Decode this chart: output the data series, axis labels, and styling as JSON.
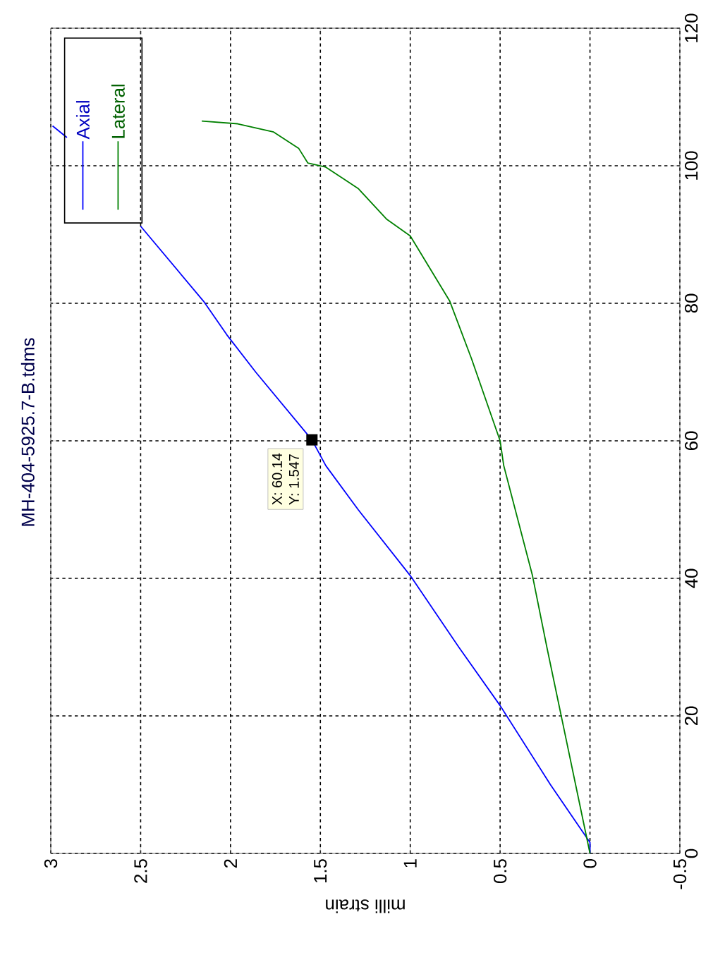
{
  "chart_data": {
    "type": "line",
    "title": "MH-404-5925.7-B.tdms",
    "xlabel": "milli strain",
    "xlim": [
      3,
      -0.5
    ],
    "ylim": [
      0,
      120
    ],
    "xticks": [
      -0.5,
      0,
      0.5,
      1,
      1.5,
      2,
      2.5,
      3
    ],
    "yticks": [
      0,
      20,
      40,
      60,
      80,
      100,
      120
    ],
    "grid": true,
    "legend": "top left",
    "marker": "none",
    "series": [
      {
        "name": "Axial",
        "color": "#0000ff",
        "x": [
          0,
          0,
          0.22,
          0.5,
          0.73,
          1.0,
          1.29,
          1.47,
          1.547,
          1.86,
          2.02,
          2.15,
          2.5,
          2.79,
          2.91,
          2.99
        ],
        "values": [
          0,
          1.6,
          10,
          21.5,
          30,
          40.4,
          50,
          56.4,
          60.14,
          70,
          75.4,
          80.3,
          91.2,
          null,
          104.1,
          105.8
        ]
      },
      {
        "name": "Lateral",
        "color": "#008000",
        "x": [
          0,
          0.08,
          0.16,
          0.24,
          0.32,
          0.48,
          0.5,
          0.66,
          0.78,
          1.0,
          1.13,
          1.29,
          1.47,
          1.57,
          1.62,
          1.76,
          1.96,
          2.16
        ],
        "values": [
          0,
          10,
          20,
          30,
          40.4,
          56.4,
          60,
          72,
          80.3,
          89.8,
          92.2,
          96.7,
          99.8,
          100.4,
          102.5,
          104.9,
          106.1,
          106.5
        ]
      }
    ],
    "annotations": [
      {
        "text": "X: 60.14",
        "x": 1.547,
        "y": 60.14
      },
      {
        "text": "Y: 1.547",
        "x": 1.547,
        "y": 60.14
      }
    ]
  }
}
